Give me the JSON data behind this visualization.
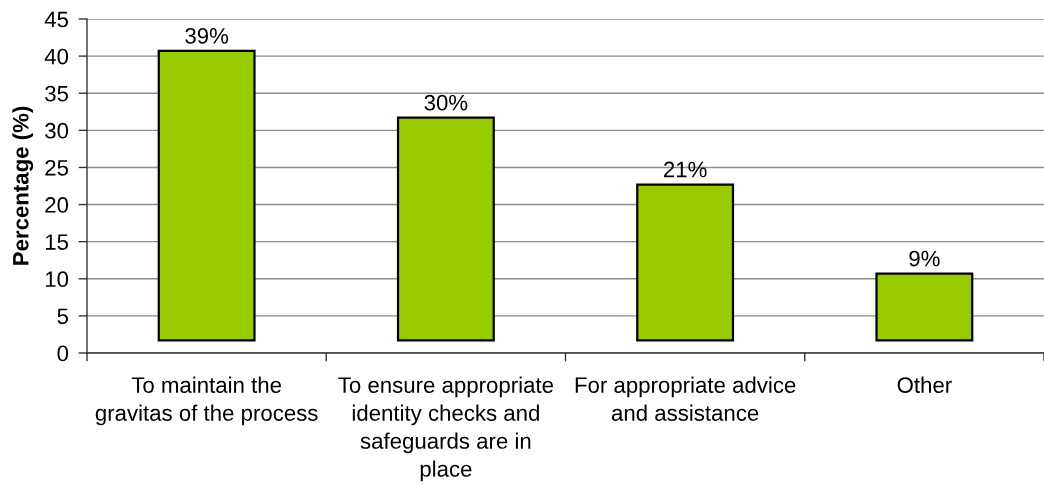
{
  "chart_data": {
    "type": "bar",
    "ylabel": "Percentage (%)",
    "categories": [
      "To maintain the\ngravitas of the process",
      "To ensure appropriate\nidentity checks and\nsafeguards are in\nplace",
      "For appropriate advice\nand assistance",
      "Other"
    ],
    "values": [
      39,
      30,
      21,
      9
    ],
    "base": [
      1.7,
      1.7,
      1.7,
      1.7
    ],
    "color": "#99cc00",
    "value_labels": [
      "39%",
      "30%",
      "21%",
      "9%"
    ],
    "ylim": [
      0,
      45
    ],
    "yticks": [
      0,
      5,
      10,
      15,
      20,
      25,
      30,
      35,
      40,
      45
    ],
    "grid": "y"
  }
}
